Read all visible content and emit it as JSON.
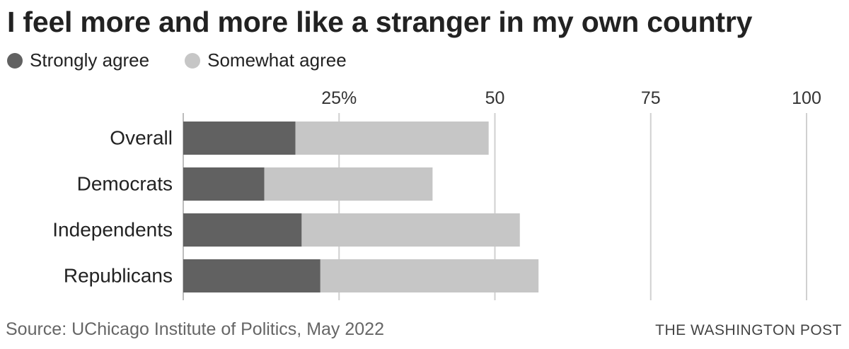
{
  "chart_data": {
    "type": "bar",
    "stacked": true,
    "orientation": "horizontal",
    "title": "I feel more and more like a stranger in my own country",
    "categories": [
      "Overall",
      "Democrats",
      "Independents",
      "Republicans"
    ],
    "series": [
      {
        "name": "Strongly agree",
        "color": "#616161",
        "values": [
          18,
          13,
          19,
          22
        ]
      },
      {
        "name": "Somewhat agree",
        "color": "#c6c6c6",
        "values": [
          31,
          27,
          35,
          35
        ]
      }
    ],
    "xlim": [
      0,
      100
    ],
    "ticks": [
      {
        "value": 25,
        "label": "25%"
      },
      {
        "value": 50,
        "label": "50"
      },
      {
        "value": 75,
        "label": "75"
      },
      {
        "value": 100,
        "label": "100"
      }
    ],
    "grid": true,
    "source": "Source: UChicago Institute of Politics, May 2022",
    "credit": "THE WASHINGTON POST"
  }
}
